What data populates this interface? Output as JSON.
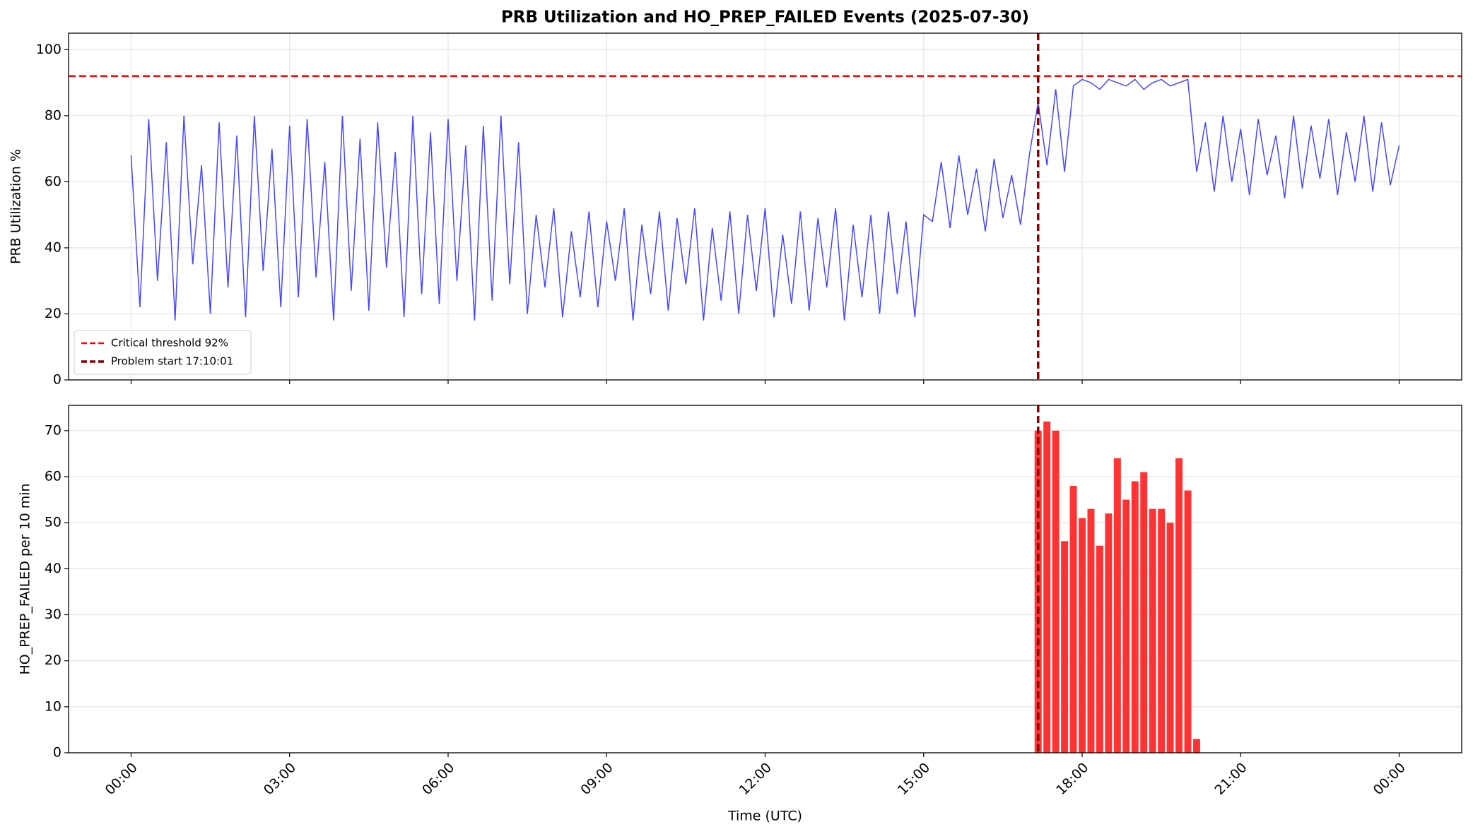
{
  "chart_data": [
    {
      "type": "line",
      "title": "PRB Utilization and HO_PREP_FAILED Events (2025-07-30)",
      "y_label": "PRB Utilization %",
      "x": [
        0,
        10,
        20,
        30,
        40,
        50,
        60,
        70,
        80,
        90,
        100,
        110,
        120,
        130,
        140,
        150,
        160,
        170,
        180,
        190,
        200,
        210,
        220,
        230,
        240,
        250,
        260,
        270,
        280,
        290,
        300,
        310,
        320,
        330,
        340,
        350,
        360,
        370,
        380,
        390,
        400,
        410,
        420,
        430,
        440,
        450,
        460,
        470,
        480,
        490,
        500,
        510,
        520,
        530,
        540,
        550,
        560,
        570,
        580,
        590,
        600,
        610,
        620,
        630,
        640,
        650,
        660,
        670,
        680,
        690,
        700,
        710,
        720,
        730,
        740,
        750,
        760,
        770,
        780,
        790,
        800,
        810,
        820,
        830,
        840,
        850,
        860,
        870,
        880,
        890,
        900,
        910,
        920,
        930,
        940,
        950,
        960,
        970,
        980,
        990,
        1000,
        1010,
        1020,
        1030,
        1040,
        1050,
        1060,
        1070,
        1080,
        1090,
        1100,
        1110,
        1120,
        1130,
        1140,
        1150,
        1160,
        1170,
        1180,
        1190,
        1200,
        1210,
        1220,
        1230,
        1240,
        1250,
        1260,
        1270,
        1280,
        1290,
        1300,
        1310,
        1320,
        1330,
        1340,
        1350,
        1360,
        1370,
        1380,
        1390,
        1400,
        1410,
        1420,
        1430,
        1440
      ],
      "series": [
        {
          "color": "#4646ff",
          "values": [
            68,
            22,
            79,
            30,
            72,
            18,
            80,
            35,
            65,
            20,
            78,
            28,
            74,
            19,
            80,
            33,
            70,
            22,
            77,
            25,
            79,
            31,
            66,
            18,
            80,
            27,
            73,
            21,
            78,
            34,
            69,
            19,
            80,
            26,
            75,
            23,
            79,
            30,
            71,
            18,
            77,
            24,
            80,
            29,
            72,
            20,
            50,
            28,
            52,
            19,
            45,
            25,
            51,
            22,
            48,
            30,
            52,
            18,
            47,
            26,
            51,
            21,
            49,
            29,
            52,
            18,
            46,
            24,
            51,
            20,
            50,
            27,
            52,
            19,
            44,
            23,
            51,
            21,
            49,
            28,
            52,
            18,
            47,
            25,
            50,
            20,
            51,
            26,
            48,
            19,
            50,
            48,
            66,
            46,
            68,
            50,
            64,
            45,
            67,
            49,
            62,
            47,
            68,
            84,
            65,
            88,
            63,
            89,
            91,
            90,
            88,
            91,
            90,
            89,
            91,
            88,
            90,
            91,
            89,
            90,
            91,
            63,
            78,
            57,
            80,
            60,
            76,
            56,
            79,
            62,
            74,
            55,
            80,
            58,
            77,
            61,
            79,
            56,
            75,
            60,
            80,
            57,
            78,
            59,
            71
          ]
        }
      ],
      "hlines": [
        {
          "y": 92,
          "name": "Critical threshold 92%",
          "color": "#ff0000"
        }
      ],
      "vlines": [
        {
          "x": 1030.017,
          "name": "Problem start 17:10:01",
          "color": "#8b0000"
        }
      ],
      "xlim": [
        -71,
        1511
      ],
      "xticks": [
        0,
        180,
        360,
        540,
        720,
        900,
        1080,
        1260,
        1440
      ],
      "ylim": [
        0,
        105
      ],
      "yticks": [
        0,
        20,
        40,
        60,
        80,
        100
      ],
      "grid": "both",
      "legend": "lower left"
    },
    {
      "type": "bar",
      "y_label": "HO_PREP_FAILED per 10 min",
      "x_label": "Time (UTC)",
      "x": [
        1030,
        1040,
        1050,
        1060,
        1070,
        1080,
        1090,
        1100,
        1110,
        1120,
        1130,
        1140,
        1150,
        1160,
        1170,
        1180,
        1190,
        1200,
        1210
      ],
      "values": [
        70,
        72,
        70,
        46,
        58,
        51,
        53,
        45,
        52,
        64,
        55,
        59,
        61,
        53,
        53,
        50,
        64,
        57,
        3
      ],
      "color": "#ff3333",
      "vlines": [
        {
          "x": 1030.017,
          "color": "#8b0000"
        }
      ],
      "xlim": [
        -71,
        1511
      ],
      "xticks": [
        {
          "value": 0,
          "label": "00:00"
        },
        {
          "value": 180,
          "label": "03:00"
        },
        {
          "value": 360,
          "label": "06:00"
        },
        {
          "value": 540,
          "label": "09:00"
        },
        {
          "value": 720,
          "label": "12:00"
        },
        {
          "value": 900,
          "label": "15:00"
        },
        {
          "value": 1080,
          "label": "18:00"
        },
        {
          "value": 1260,
          "label": "21:00"
        },
        {
          "value": 1440,
          "label": "00:00"
        }
      ],
      "ylim": [
        0,
        75.5
      ],
      "yticks": [
        0,
        10,
        20,
        30,
        40,
        50,
        60,
        70
      ],
      "grid": "y"
    }
  ]
}
